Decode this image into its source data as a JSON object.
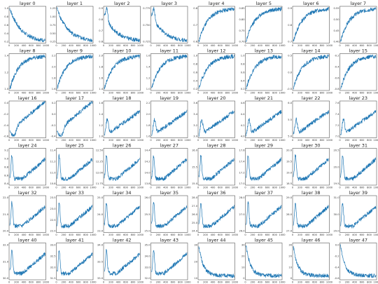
{
  "style": {
    "line_color": "#1f77b4"
  },
  "chart_data": {
    "type": "line",
    "grid": false,
    "layout": {
      "rows": 6,
      "cols": 8
    },
    "xlim": [
      0,
      1000
    ],
    "x_ticks": [
      "0",
      "200",
      "400",
      "600",
      "800",
      "1000"
    ],
    "panels": [
      {
        "title": "layer 0",
        "y_ticks": [
          "0.2",
          "0.4",
          "0.6",
          "0.8",
          "1.0"
        ],
        "shape": "decay",
        "y_start": 1.05,
        "y_end": 0.15
      },
      {
        "title": "layer 1",
        "y_ticks": [
          "0.25",
          "0.50",
          "0.75",
          "1.00",
          "1.25"
        ],
        "shape": "decay",
        "y_start": 1.2,
        "y_end": 0.22
      },
      {
        "title": "layer 2",
        "y_ticks": [
          "0.6",
          "0.7",
          "0.8",
          "0.9"
        ],
        "shape": "bumpdecay",
        "y_start": 0.75,
        "y_end": 0.58
      },
      {
        "title": "layer 3",
        "y_ticks": [
          "0.725",
          "0.750",
          "0.775"
        ],
        "shape": "bumpdecay",
        "y_start": 0.74,
        "y_end": 0.72
      },
      {
        "title": "layer 4",
        "y_ticks": [
          "0.6",
          "0.7",
          "0.8"
        ],
        "shape": "rise",
        "y_start": 0.55,
        "y_end": 0.83
      },
      {
        "title": "layer 5",
        "y_ticks": [
          "0.70",
          "0.75",
          "0.80",
          "0.85"
        ],
        "shape": "rise",
        "y_start": 0.68,
        "y_end": 0.86
      },
      {
        "title": "layer 6",
        "y_ticks": [
          "0.7",
          "0.8",
          "0.9"
        ],
        "shape": "rise",
        "y_start": 0.66,
        "y_end": 0.92
      },
      {
        "title": "layer 7",
        "y_ticks": [
          "0.40",
          "0.45",
          "0.50",
          "0.55"
        ],
        "shape": "rise",
        "y_start": 0.38,
        "y_end": 0.56
      },
      {
        "title": "layer 8",
        "y_ticks": [
          "1.0",
          "1.2",
          "1.4"
        ],
        "shape": "rise",
        "y_start": 0.9,
        "y_end": 1.42
      },
      {
        "title": "layer 9",
        "y_ticks": [
          "1.6",
          "1.8",
          "2.0",
          "2.2"
        ],
        "shape": "rise",
        "y_start": 1.5,
        "y_end": 2.22
      },
      {
        "title": "layer 10",
        "y_ticks": [
          "1.4",
          "1.6",
          "1.8",
          "2.0"
        ],
        "shape": "rise",
        "y_start": 1.35,
        "y_end": 2.02
      },
      {
        "title": "layer 11",
        "y_ticks": [
          "1.0",
          "1.2",
          "1.4",
          "1.6"
        ],
        "shape": "rise",
        "y_start": 0.95,
        "y_end": 1.65
      },
      {
        "title": "layer 12",
        "y_ticks": [
          "0.2",
          "0.4",
          "0.6",
          "0.8",
          "1.0"
        ],
        "shape": "rise",
        "y_start": 0.15,
        "y_end": 1.02
      },
      {
        "title": "layer 13",
        "y_ticks": [
          "0.2",
          "0.4",
          "0.6",
          "0.8",
          "1.0"
        ],
        "shape": "rise",
        "y_start": 0.18,
        "y_end": 1.0
      },
      {
        "title": "layer 14",
        "y_ticks": [
          "-0.5",
          "0.0",
          "0.5"
        ],
        "shape": "rise",
        "y_start": -0.6,
        "y_end": 0.6
      },
      {
        "title": "layer 15",
        "y_ticks": [
          "-0.8",
          "-0.6",
          "-0.4",
          "-0.2"
        ],
        "shape": "rise",
        "y_start": -0.82,
        "y_end": -0.18
      },
      {
        "title": "layer 16",
        "y_ticks": [
          "-0.6",
          "-0.4",
          "-0.2",
          "0.0"
        ],
        "shape": "diprise",
        "y_start": -0.45,
        "y_end": 0.05
      },
      {
        "title": "layer 17",
        "y_ticks": [
          "-0.4",
          "-0.2",
          "0.0",
          "0.2"
        ],
        "shape": "diprise",
        "y_start": -0.3,
        "y_end": 0.25
      },
      {
        "title": "layer 18",
        "y_ticks": [
          "1.0",
          "1.2",
          "1.4",
          "1.6"
        ],
        "shape": "bumprise",
        "y_start": 1.2,
        "y_end": 1.55
      },
      {
        "title": "layer 19",
        "y_ticks": [
          "1.6",
          "1.8",
          "2.0",
          "2.2"
        ],
        "shape": "bumprise",
        "y_start": 1.8,
        "y_end": 2.1
      },
      {
        "title": "layer 20",
        "y_ticks": [
          "3.0",
          "3.2",
          "3.4",
          "3.6"
        ],
        "shape": "bumprise",
        "y_start": 3.2,
        "y_end": 3.55
      },
      {
        "title": "layer 21",
        "y_ticks": [
          "4.0",
          "4.2",
          "4.4",
          "4.6"
        ],
        "shape": "bumprise",
        "y_start": 4.2,
        "y_end": 4.55
      },
      {
        "title": "layer 22",
        "y_ticks": [
          "5.0",
          "5.5",
          "6.0"
        ],
        "shape": "bumprise",
        "y_start": 5.2,
        "y_end": 5.9
      },
      {
        "title": "layer 23",
        "y_ticks": [
          "7.0",
          "7.2",
          "7.4",
          "7.6"
        ],
        "shape": "bumprise",
        "y_start": 7.1,
        "y_end": 7.5
      },
      {
        "title": "layer 24",
        "y_ticks": [
          "8.4",
          "8.6",
          "8.8",
          "9.0",
          "9.2"
        ],
        "shape": "bumpdiprise",
        "y_start": 8.8,
        "y_end": 8.7
      },
      {
        "title": "layer 25",
        "y_ticks": [
          "10.8",
          "11.0",
          "11.2",
          "11.4"
        ],
        "shape": "bumpdiprise",
        "y_start": 11.0,
        "y_end": 11.0
      },
      {
        "title": "layer 26",
        "y_ticks": [
          "11.75",
          "12.00",
          "12.25",
          "12.50"
        ],
        "shape": "bumpdiprise",
        "y_start": 12.0,
        "y_end": 12.1
      },
      {
        "title": "layer 27",
        "y_ticks": [
          "13.8",
          "14.0",
          "14.2",
          "14.4"
        ],
        "shape": "bumpdiprise",
        "y_start": 14.0,
        "y_end": 14.15
      },
      {
        "title": "layer 28",
        "y_ticks": [
          "15.0",
          "15.5",
          "16.0"
        ],
        "shape": "bumpdiprise",
        "y_start": 15.4,
        "y_end": 15.6
      },
      {
        "title": "layer 29",
        "y_ticks": [
          "17.0",
          "17.2",
          "17.4",
          "17.6"
        ],
        "shape": "bumpdiprise",
        "y_start": 17.2,
        "y_end": 17.4
      },
      {
        "title": "layer 30",
        "y_ticks": [
          "18.5",
          "19.0",
          "19.5",
          "20.0"
        ],
        "shape": "bumpdiprise",
        "y_start": 19.0,
        "y_end": 19.5
      },
      {
        "title": "layer 31",
        "y_ticks": [
          "19.5",
          "20.0",
          "20.5"
        ],
        "shape": "bumpdiprise",
        "y_start": 19.8,
        "y_end": 20.2
      },
      {
        "title": "layer 32",
        "y_ticks": [
          "20.0",
          "21.0",
          "22.0"
        ],
        "shape": "bumpdiprise",
        "y_start": 20.8,
        "y_end": 21.5
      },
      {
        "title": "layer 33",
        "y_ticks": [
          "22.0",
          "22.5",
          "23.0",
          "23.5"
        ],
        "shape": "bumpdiprise",
        "y_start": 22.6,
        "y_end": 23.3
      },
      {
        "title": "layer 34",
        "y_ticks": [
          "23.0",
          "24.0",
          "25.0"
        ],
        "shape": "bumpdiprise",
        "y_start": 23.8,
        "y_end": 24.6
      },
      {
        "title": "layer 35",
        "y_ticks": [
          "25.0",
          "25.5",
          "26.0"
        ],
        "shape": "bumpdiprise",
        "y_start": 25.3,
        "y_end": 25.9
      },
      {
        "title": "layer 36",
        "y_ticks": [
          "24.0",
          "25.0",
          "26.0",
          "27.0",
          "28.0"
        ],
        "shape": "bumpdiprise",
        "y_start": 25.5,
        "y_end": 27.2
      },
      {
        "title": "layer 37",
        "y_ticks": [
          "26.0",
          "27.0",
          "28.0"
        ],
        "shape": "bumpdiprise",
        "y_start": 26.8,
        "y_end": 27.8
      },
      {
        "title": "layer 38",
        "y_ticks": [
          "27.0",
          "28.0",
          "29.0"
        ],
        "shape": "bumpdiprise",
        "y_start": 27.6,
        "y_end": 28.7
      },
      {
        "title": "layer 39",
        "y_ticks": [
          "29.0",
          "30.0",
          "31.0"
        ],
        "shape": "bumpdiprise",
        "y_start": 29.8,
        "y_end": 30.8
      },
      {
        "title": "layer 40",
        "y_ticks": [
          "30.0",
          "31.0",
          "32.0"
        ],
        "shape": "bumpdiprise",
        "y_start": 30.6,
        "y_end": 31.6
      },
      {
        "title": "layer 41",
        "y_ticks": [
          "31.5",
          "32.0",
          "32.5",
          "33.0"
        ],
        "shape": "bumpdiprise",
        "y_start": 32.0,
        "y_end": 32.8
      },
      {
        "title": "layer 42",
        "y_ticks": [
          "33.0",
          "33.5",
          "34.0"
        ],
        "shape": "bumpdiprise",
        "y_start": 33.3,
        "y_end": 33.9
      },
      {
        "title": "layer 43",
        "y_ticks": [
          "32.0",
          "33.0",
          "34.0",
          "35.0"
        ],
        "shape": "bumpdiprise",
        "y_start": 33.0,
        "y_end": 34.6
      },
      {
        "title": "layer 44",
        "y_ticks": [
          "10",
          "20",
          "30"
        ],
        "shape": "spikedecay",
        "y_start": 30,
        "y_end": 8
      },
      {
        "title": "layer 45",
        "y_ticks": [
          "0",
          "10",
          "20",
          "30"
        ],
        "shape": "spikedecay",
        "y_start": 28,
        "y_end": 4
      },
      {
        "title": "layer 46",
        "y_ticks": [
          "0",
          "10",
          "20",
          "30"
        ],
        "shape": "spikedecay",
        "y_start": 30,
        "y_end": 3
      },
      {
        "title": "layer 47",
        "y_ticks": [
          "-0.6",
          "-0.4",
          "-0.2",
          "0.0"
        ],
        "shape": "spikedecay",
        "y_start": -0.05,
        "y_end": -0.45
      }
    ]
  }
}
